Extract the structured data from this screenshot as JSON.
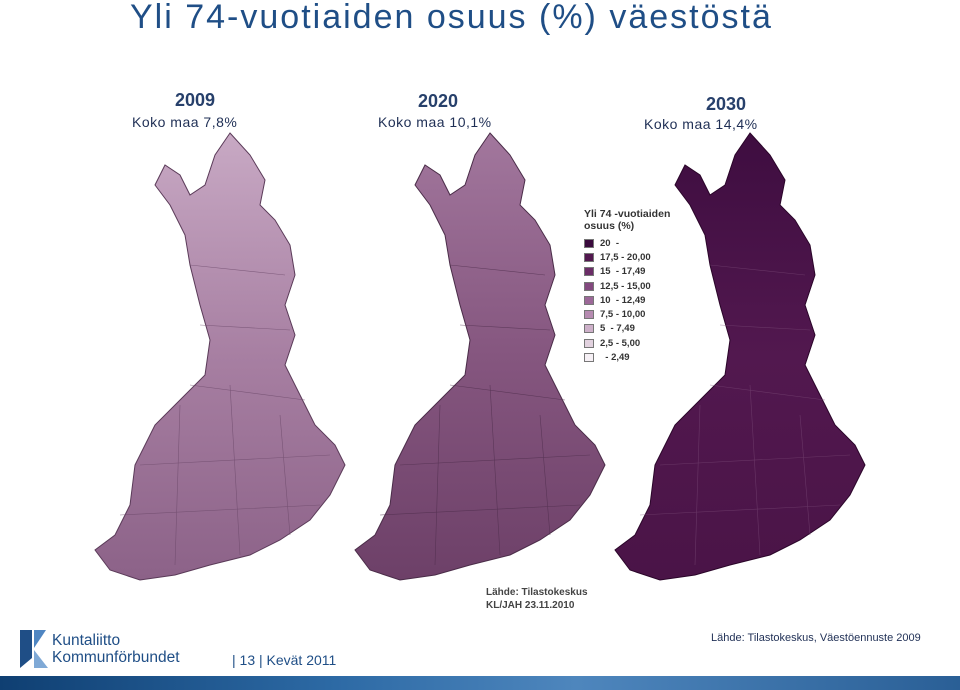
{
  "title": "Yli 74-vuotiaiden osuus (%) väestöstä",
  "panels": [
    {
      "year": "2009",
      "koko": "Koko maa 7,8%"
    },
    {
      "year": "2020",
      "koko": "Koko maa 10,1%"
    },
    {
      "year": "2030",
      "koko": "Koko maa 14,4%"
    }
  ],
  "legend": {
    "title_line1": "Yli 74 -vuotiaiden",
    "title_line2": "osuus (%)",
    "classes": [
      {
        "range": "20  -",
        "color": "#3a0a3d"
      },
      {
        "range": "17,5 - 20,00",
        "color": "#52184f"
      },
      {
        "range": "15  - 17,49",
        "color": "#6b2d67"
      },
      {
        "range": "12,5 - 15,00",
        "color": "#83497f"
      },
      {
        "range": "10  - 12,49",
        "color": "#9c6898"
      },
      {
        "range": "7,5 - 10,00",
        "color": "#b68bb1"
      },
      {
        "range": "5  - 7,49",
        "color": "#cdb0c9"
      },
      {
        "range": "2,5 - 5,00",
        "color": "#e2d2df"
      },
      {
        "range": "  - 2,49",
        "color": "#f6f0f5"
      }
    ]
  },
  "map_source": {
    "line1": "Lähde: Tilastokeskus",
    "line2": "KL/JAH 23.11.2010"
  },
  "footer": {
    "logo_line1": "Kuntaliitto",
    "logo_line2": "Kommunförbundet",
    "page_info": "|  13  |  Kevät 2011",
    "source": "Lähde: Tilastokeskus, Väestöennuste 2009"
  }
}
